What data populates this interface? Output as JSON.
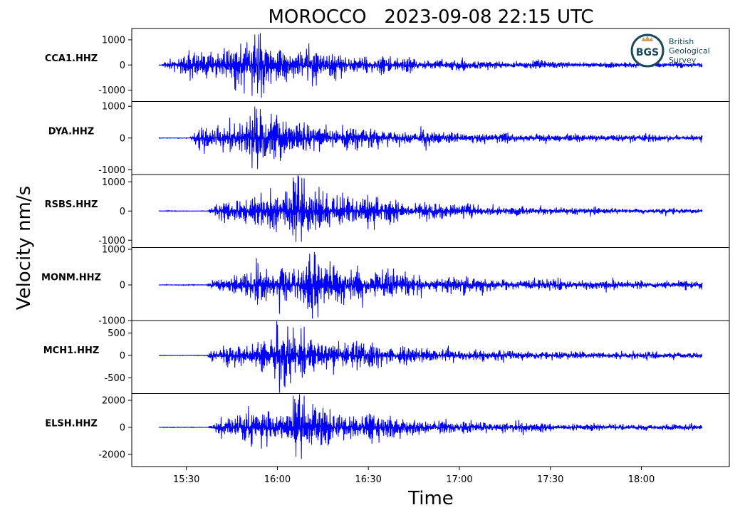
{
  "chart_data": {
    "type": "line",
    "title": "MOROCCO   2023-09-08 22:15 UTC",
    "xlabel": "Time",
    "ylabel": "Velocity nm/s",
    "x_ticks": [
      "15:30",
      "16:00",
      "16:30",
      "17:00",
      "17:30",
      "18:00"
    ],
    "x_range": [
      "15:12",
      "18:29"
    ],
    "line_color": "#0000ff",
    "logo": {
      "abbr": "BGS",
      "lines": [
        "British",
        "Geological",
        "Survey"
      ]
    },
    "panels": [
      {
        "station": "CCA1.HHZ",
        "ylim": [
          -1450,
          1450
        ],
        "yticks": [
          1000,
          0,
          -1000
        ],
        "ytick_labels": [
          "1000",
          "0",
          "-1000"
        ],
        "peak": 1300,
        "onset": "15:22",
        "max_time": "15:53",
        "tail": 140
      },
      {
        "station": "DYA.HHZ",
        "ylim": [
          -1150,
          1150
        ],
        "yticks": [
          1000,
          0,
          -1000
        ],
        "ytick_labels": [
          "1000",
          "0",
          "-1000"
        ],
        "peak": 1060,
        "onset": "15:31",
        "max_time": "15:53",
        "tail": 150
      },
      {
        "station": "RSBS.HHZ",
        "ylim": [
          -1250,
          1250
        ],
        "yticks": [
          1000,
          0,
          -1000
        ],
        "ytick_labels": [
          "1000",
          "0",
          "-1000"
        ],
        "peak": 1200,
        "onset": "15:37",
        "max_time": "16:07",
        "tail": 110
      },
      {
        "station": "MONM.HHZ",
        "ylim": [
          -1000,
          1050
        ],
        "yticks": [
          1000,
          0,
          -1000
        ],
        "ytick_labels": [
          "1000",
          "0",
          "-1000"
        ],
        "peak": 1000,
        "onset": "15:37",
        "max_time": "16:12",
        "tail": 140
      },
      {
        "station": "MCH1.HHZ",
        "ylim": [
          -850,
          780
        ],
        "yticks": [
          500,
          0,
          -500
        ],
        "ytick_labels": [
          "500",
          "0",
          "-500"
        ],
        "peak": 720,
        "onset": "15:37",
        "max_time": "16:04",
        "tail": 90
      },
      {
        "station": "ELSH.HHZ",
        "ylim": [
          -2900,
          2500
        ],
        "yticks": [
          2000,
          0,
          -2000
        ],
        "ytick_labels": [
          "2000",
          "0",
          "-2000"
        ],
        "peak": 2400,
        "onset": "15:37",
        "max_time": "16:07",
        "tail": 260
      }
    ]
  }
}
